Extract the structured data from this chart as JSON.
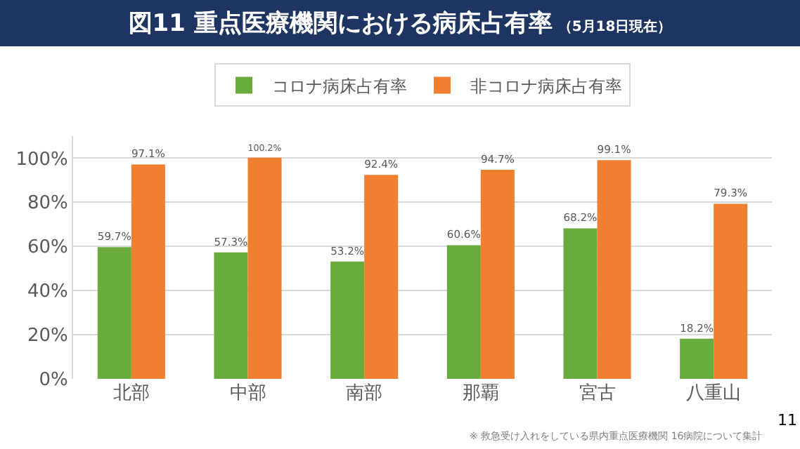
{
  "chart_data": {
    "type": "bar",
    "title": "図11 重点医療機関における病床占有率",
    "subtitle": "（5月18日現在）",
    "categories": [
      "北部",
      "中部",
      "南部",
      "那覇",
      "宮古",
      "八重山"
    ],
    "series": [
      {
        "name": "コロナ病床占有率",
        "color": "#6aab3e",
        "values": [
          59.7,
          57.3,
          53.2,
          60.6,
          68.2,
          18.2
        ],
        "value_labels": [
          "59.7%",
          "57.3%",
          "53.2%",
          "60.6%",
          "68.2%",
          "18.2%"
        ]
      },
      {
        "name": "非コロナ病床占有率",
        "color": "#f07f2f",
        "values": [
          97.1,
          100.2,
          92.4,
          94.7,
          99.1,
          79.3
        ],
        "value_labels": [
          "97.1%",
          "100.2%",
          "92.4%",
          "94.7%",
          "99.1%",
          "79.3%"
        ]
      }
    ],
    "ylim": [
      0,
      110
    ],
    "yticks": [
      {
        "value": 0,
        "label": "0%"
      },
      {
        "value": 20,
        "label": "20%"
      },
      {
        "value": 40,
        "label": "40%"
      },
      {
        "value": 60,
        "label": "60%"
      },
      {
        "value": 80,
        "label": "80%"
      },
      {
        "value": 100,
        "label": "100%"
      }
    ],
    "grid": "y",
    "legend": "top",
    "annotations": [
      "※ 救急受け入れをしている県内重点医療機関 16病院について集計",
      "11"
    ]
  }
}
